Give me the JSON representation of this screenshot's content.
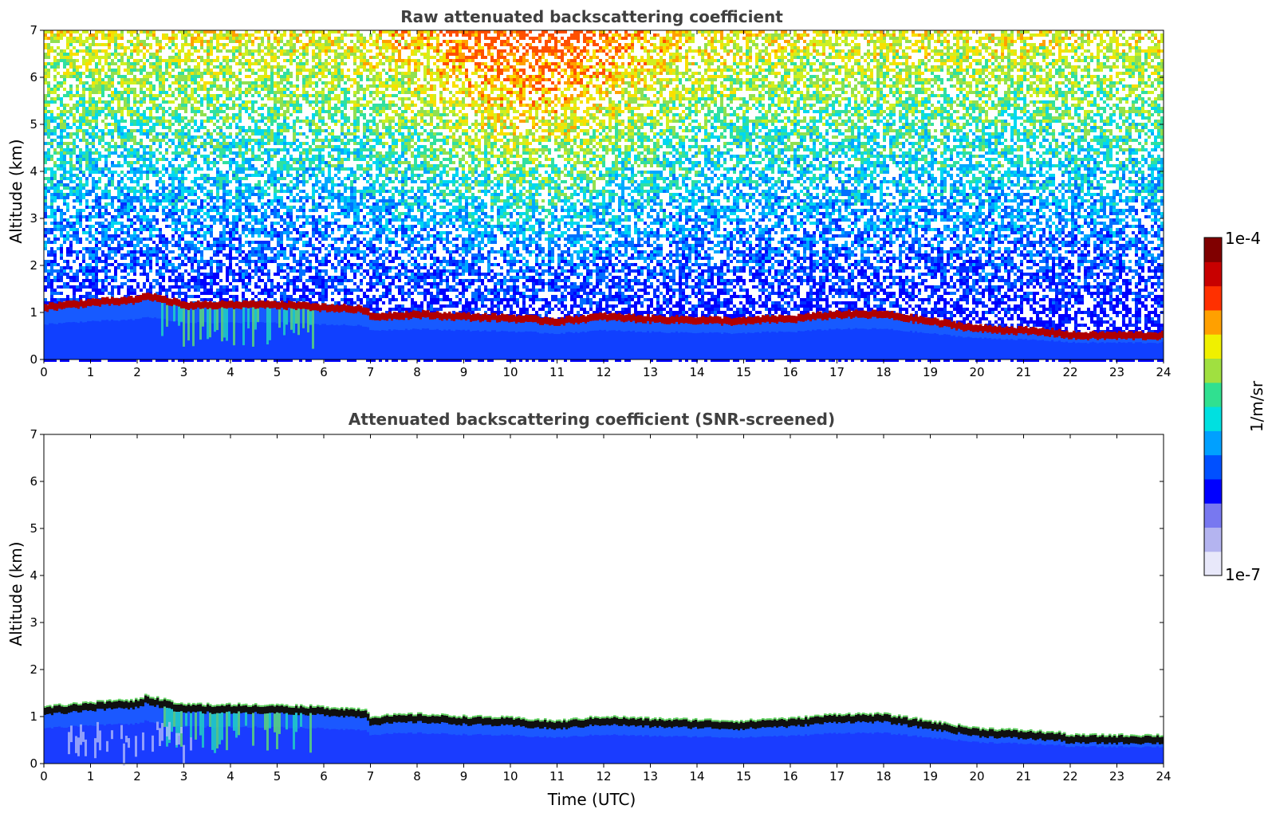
{
  "chart_data": [
    {
      "type": "heatmap",
      "title": "Raw attenuated backscattering coefficient",
      "xlabel": "",
      "ylabel": "Altitude (km)",
      "xlim": [
        0,
        24
      ],
      "ylim": [
        0,
        7
      ],
      "x_ticks": [
        "0",
        "1",
        "2",
        "3",
        "4",
        "5",
        "6",
        "7",
        "8",
        "9",
        "10",
        "11",
        "12",
        "13",
        "14",
        "15",
        "16",
        "17",
        "18",
        "19",
        "20",
        "21",
        "22",
        "23",
        "24"
      ],
      "y_ticks": [
        "0",
        "1",
        "2",
        "3",
        "4",
        "5",
        "6",
        "7"
      ],
      "layer_top_km": {
        "time_utc": [
          0,
          1,
          2,
          2.2,
          3,
          4,
          5,
          6,
          6.9,
          7,
          8,
          9,
          10,
          11,
          12,
          13,
          14,
          15,
          15.6,
          16,
          17,
          18,
          19,
          20,
          21,
          21.8,
          22,
          23,
          23.8
        ],
        "altitude_km": [
          1.15,
          1.25,
          1.3,
          1.4,
          1.2,
          1.2,
          1.2,
          1.15,
          1.1,
          0.95,
          1.0,
          0.95,
          0.92,
          0.85,
          0.95,
          0.9,
          0.88,
          0.85,
          0.9,
          0.9,
          1.0,
          1.0,
          0.85,
          0.7,
          0.65,
          0.6,
          0.55,
          0.55,
          0.55
        ]
      }
    },
    {
      "type": "heatmap",
      "title": "Attenuated backscattering coefficient (SNR-screened)",
      "xlabel": "Time (UTC)",
      "ylabel": "Altitude (km)",
      "xlim": [
        0,
        24
      ],
      "ylim": [
        0,
        7
      ],
      "x_ticks": [
        "0",
        "1",
        "2",
        "3",
        "4",
        "5",
        "6",
        "7",
        "8",
        "9",
        "10",
        "11",
        "12",
        "13",
        "14",
        "15",
        "16",
        "17",
        "18",
        "19",
        "20",
        "21",
        "22",
        "23",
        "24"
      ],
      "y_ticks": [
        "0",
        "1",
        "2",
        "3",
        "4",
        "5",
        "6",
        "7"
      ],
      "layer_top_km": {
        "time_utc": [
          0,
          1,
          2,
          2.2,
          3,
          4,
          5,
          6,
          6.9,
          7,
          8,
          9,
          10,
          11,
          12,
          13,
          14,
          15,
          15.6,
          16,
          17,
          18,
          19,
          20,
          21,
          21.8,
          22,
          23,
          23.8
        ],
        "altitude_km": [
          1.15,
          1.25,
          1.3,
          1.4,
          1.2,
          1.2,
          1.2,
          1.15,
          1.1,
          0.95,
          1.0,
          0.95,
          0.92,
          0.85,
          0.95,
          0.9,
          0.88,
          0.85,
          0.9,
          0.9,
          1.0,
          1.0,
          0.85,
          0.7,
          0.65,
          0.6,
          0.55,
          0.55,
          0.55
        ]
      }
    }
  ],
  "colorbar": {
    "max_label": "1e-4",
    "min_label": "1e-7",
    "unit_label": "1/m/sr",
    "colors": [
      "#e8e8fa",
      "#b4b4f0",
      "#7878f0",
      "#0000ff",
      "#0050ff",
      "#00a0ff",
      "#00e0e0",
      "#30e090",
      "#a0e040",
      "#f0f000",
      "#ffa000",
      "#ff3000",
      "#c80000",
      "#800000"
    ]
  }
}
